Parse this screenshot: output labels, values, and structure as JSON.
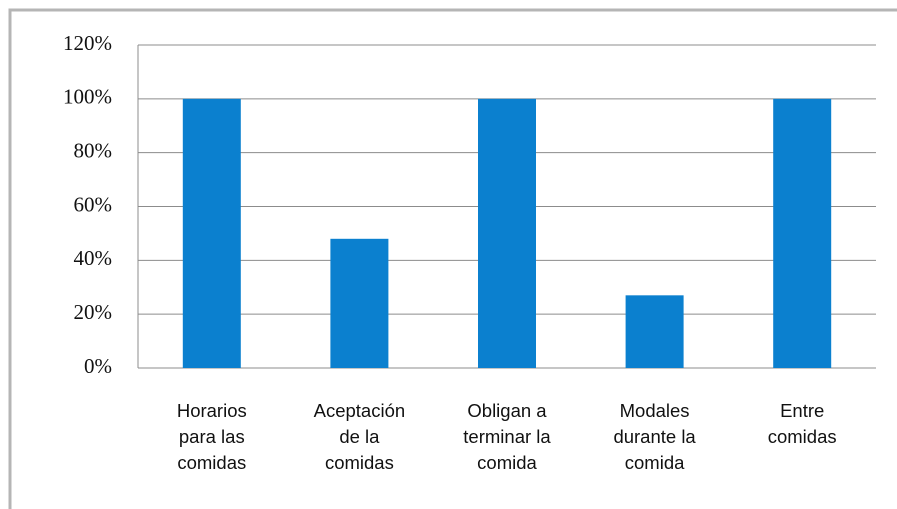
{
  "chart_data": {
    "type": "bar",
    "categories": [
      "Horarios para las comidas",
      "Aceptación de la comidas",
      "Obligan a terminar la comida",
      "Modales durante la comida",
      "Entre comidas"
    ],
    "values": [
      100,
      48,
      100,
      27,
      100
    ],
    "color": "#0b80cf",
    "ylim": [
      0,
      120
    ],
    "yticks": [
      {
        "value": 0,
        "label": "0%"
      },
      {
        "value": 20,
        "label": "20%"
      },
      {
        "value": 40,
        "label": "40%"
      },
      {
        "value": 60,
        "label": "60%"
      },
      {
        "value": 80,
        "label": "80%"
      },
      {
        "value": 100,
        "label": "100%"
      },
      {
        "value": 120,
        "label": "120%"
      }
    ],
    "grid": true
  }
}
